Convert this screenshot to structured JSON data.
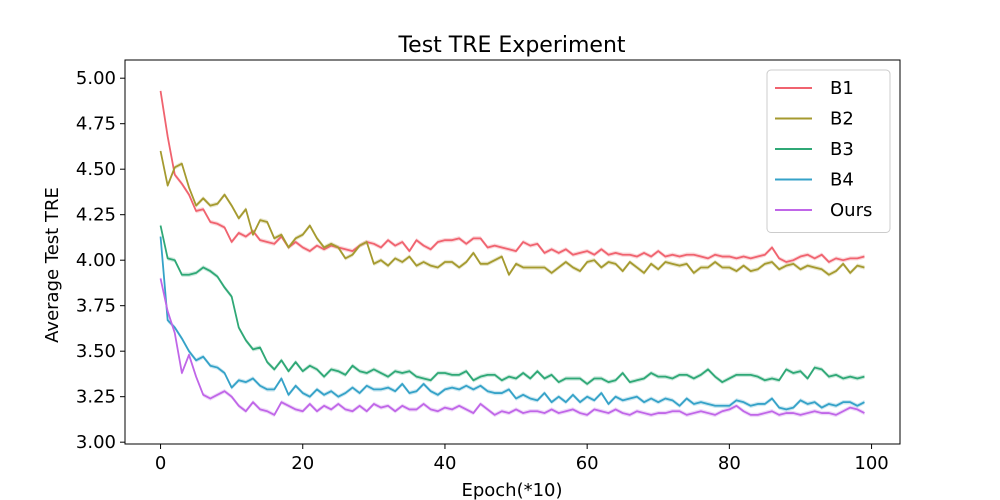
{
  "chart_data": {
    "type": "line",
    "title": "Test TRE Experiment",
    "xlabel": "Epoch(*10)",
    "ylabel": "Average Test TRE",
    "xlim": [
      -5,
      104
    ],
    "ylim": [
      2.99,
      5.1
    ],
    "xticks": [
      0,
      20,
      40,
      60,
      80,
      100
    ],
    "yticks": [
      "3.00",
      "3.25",
      "3.50",
      "3.75",
      "4.00",
      "4.25",
      "4.50",
      "4.75",
      "5.00"
    ],
    "grid": false,
    "legend_position": "top-right",
    "x": [
      0,
      1,
      2,
      3,
      4,
      5,
      6,
      7,
      8,
      9,
      10,
      11,
      12,
      13,
      14,
      15,
      16,
      17,
      18,
      19,
      20,
      21,
      22,
      23,
      24,
      25,
      26,
      27,
      28,
      29,
      30,
      31,
      32,
      33,
      34,
      35,
      36,
      37,
      38,
      39,
      40,
      41,
      42,
      43,
      44,
      45,
      46,
      47,
      48,
      49,
      50,
      51,
      52,
      53,
      54,
      55,
      56,
      57,
      58,
      59,
      60,
      61,
      62,
      63,
      64,
      65,
      66,
      67,
      68,
      69,
      70,
      71,
      72,
      73,
      74,
      75,
      76,
      77,
      78,
      79,
      80,
      81,
      82,
      83,
      84,
      85,
      86,
      87,
      88,
      89,
      90,
      91,
      92,
      93,
      94,
      95,
      96,
      97,
      98,
      99
    ],
    "series": [
      {
        "name": "B1",
        "color": "#f0636f",
        "values": [
          4.93,
          4.68,
          4.47,
          4.42,
          4.36,
          4.27,
          4.28,
          4.21,
          4.2,
          4.18,
          4.1,
          4.15,
          4.13,
          4.16,
          4.11,
          4.1,
          4.09,
          4.13,
          4.07,
          4.1,
          4.07,
          4.05,
          4.08,
          4.06,
          4.08,
          4.07,
          4.06,
          4.05,
          4.08,
          4.1,
          4.09,
          4.07,
          4.11,
          4.08,
          4.1,
          4.05,
          4.11,
          4.08,
          4.06,
          4.1,
          4.11,
          4.11,
          4.12,
          4.09,
          4.12,
          4.12,
          4.07,
          4.08,
          4.07,
          4.06,
          4.05,
          4.1,
          4.08,
          4.09,
          4.04,
          4.06,
          4.04,
          4.06,
          4.03,
          4.04,
          4.05,
          4.03,
          4.06,
          4.03,
          4.04,
          4.03,
          4.03,
          4.02,
          4.04,
          4.02,
          4.05,
          4.02,
          4.03,
          4.02,
          4.03,
          4.03,
          4.02,
          4.01,
          4.03,
          4.02,
          4.02,
          4.01,
          4.02,
          4.01,
          4.02,
          4.03,
          4.07,
          4.01,
          3.99,
          4.0,
          4.02,
          4.03,
          4.01,
          4.03,
          3.99,
          4.01,
          4.0,
          4.01,
          4.01,
          4.02
        ]
      },
      {
        "name": "B2",
        "color": "#a59a2f",
        "values": [
          4.6,
          4.41,
          4.51,
          4.53,
          4.4,
          4.3,
          4.34,
          4.3,
          4.31,
          4.36,
          4.3,
          4.23,
          4.28,
          4.14,
          4.22,
          4.21,
          4.12,
          4.14,
          4.07,
          4.12,
          4.14,
          4.19,
          4.12,
          4.07,
          4.09,
          4.07,
          4.01,
          4.03,
          4.08,
          4.1,
          3.98,
          4.0,
          3.97,
          4.01,
          3.99,
          4.02,
          3.97,
          3.99,
          3.97,
          3.96,
          3.99,
          3.99,
          3.96,
          3.99,
          4.04,
          3.98,
          3.98,
          4.0,
          4.02,
          3.92,
          3.98,
          3.96,
          3.96,
          3.96,
          3.96,
          3.93,
          3.96,
          3.99,
          3.96,
          3.94,
          3.99,
          4.0,
          3.96,
          3.99,
          3.98,
          3.94,
          3.99,
          3.96,
          3.93,
          3.98,
          3.95,
          3.99,
          3.98,
          3.97,
          3.98,
          3.93,
          3.96,
          3.96,
          3.99,
          3.96,
          3.96,
          3.94,
          3.97,
          3.94,
          3.95,
          3.98,
          3.99,
          3.95,
          3.97,
          3.98,
          3.95,
          3.97,
          3.96,
          3.95,
          3.92,
          3.94,
          3.98,
          3.93,
          3.97,
          3.96
        ]
      },
      {
        "name": "B3",
        "color": "#2fa876",
        "values": [
          4.19,
          4.01,
          4.0,
          3.92,
          3.92,
          3.93,
          3.96,
          3.94,
          3.91,
          3.85,
          3.8,
          3.63,
          3.56,
          3.51,
          3.52,
          3.44,
          3.4,
          3.45,
          3.39,
          3.44,
          3.39,
          3.42,
          3.4,
          3.36,
          3.4,
          3.39,
          3.37,
          3.42,
          3.39,
          3.38,
          3.4,
          3.38,
          3.36,
          3.39,
          3.38,
          3.39,
          3.36,
          3.35,
          3.34,
          3.38,
          3.38,
          3.37,
          3.37,
          3.39,
          3.34,
          3.36,
          3.37,
          3.37,
          3.34,
          3.36,
          3.35,
          3.38,
          3.35,
          3.39,
          3.35,
          3.37,
          3.33,
          3.35,
          3.35,
          3.35,
          3.32,
          3.35,
          3.35,
          3.33,
          3.34,
          3.38,
          3.33,
          3.34,
          3.35,
          3.38,
          3.36,
          3.36,
          3.35,
          3.37,
          3.37,
          3.35,
          3.37,
          3.4,
          3.36,
          3.33,
          3.35,
          3.37,
          3.37,
          3.37,
          3.36,
          3.34,
          3.35,
          3.34,
          3.4,
          3.38,
          3.39,
          3.35,
          3.41,
          3.4,
          3.36,
          3.37,
          3.35,
          3.36,
          3.35,
          3.36
        ]
      },
      {
        "name": "B4",
        "color": "#35a2c8",
        "values": [
          4.13,
          3.67,
          3.63,
          3.57,
          3.5,
          3.45,
          3.47,
          3.42,
          3.41,
          3.38,
          3.3,
          3.34,
          3.33,
          3.35,
          3.31,
          3.29,
          3.29,
          3.35,
          3.26,
          3.31,
          3.27,
          3.25,
          3.29,
          3.26,
          3.28,
          3.25,
          3.27,
          3.3,
          3.27,
          3.31,
          3.29,
          3.29,
          3.3,
          3.28,
          3.32,
          3.27,
          3.28,
          3.32,
          3.28,
          3.26,
          3.29,
          3.3,
          3.29,
          3.31,
          3.29,
          3.31,
          3.28,
          3.27,
          3.27,
          3.29,
          3.24,
          3.26,
          3.24,
          3.23,
          3.27,
          3.22,
          3.25,
          3.22,
          3.26,
          3.22,
          3.25,
          3.23,
          3.27,
          3.21,
          3.25,
          3.23,
          3.24,
          3.25,
          3.22,
          3.24,
          3.22,
          3.24,
          3.23,
          3.2,
          3.24,
          3.21,
          3.22,
          3.21,
          3.2,
          3.2,
          3.2,
          3.23,
          3.22,
          3.2,
          3.21,
          3.21,
          3.24,
          3.19,
          3.18,
          3.19,
          3.23,
          3.21,
          3.22,
          3.19,
          3.21,
          3.2,
          3.22,
          3.22,
          3.2,
          3.22
        ]
      },
      {
        "name": "Ours",
        "color": "#c066e8",
        "values": [
          3.9,
          3.72,
          3.6,
          3.38,
          3.48,
          3.36,
          3.26,
          3.24,
          3.26,
          3.28,
          3.25,
          3.2,
          3.17,
          3.22,
          3.18,
          3.17,
          3.15,
          3.22,
          3.2,
          3.18,
          3.17,
          3.21,
          3.17,
          3.2,
          3.18,
          3.21,
          3.18,
          3.17,
          3.2,
          3.17,
          3.21,
          3.19,
          3.2,
          3.17,
          3.2,
          3.18,
          3.18,
          3.21,
          3.18,
          3.17,
          3.19,
          3.18,
          3.2,
          3.18,
          3.16,
          3.21,
          3.18,
          3.15,
          3.17,
          3.16,
          3.18,
          3.16,
          3.17,
          3.17,
          3.16,
          3.18,
          3.16,
          3.17,
          3.18,
          3.16,
          3.15,
          3.18,
          3.17,
          3.16,
          3.18,
          3.16,
          3.15,
          3.17,
          3.16,
          3.15,
          3.16,
          3.16,
          3.17,
          3.17,
          3.15,
          3.16,
          3.17,
          3.16,
          3.15,
          3.17,
          3.18,
          3.2,
          3.17,
          3.15,
          3.15,
          3.16,
          3.17,
          3.15,
          3.16,
          3.16,
          3.15,
          3.16,
          3.17,
          3.16,
          3.16,
          3.15,
          3.17,
          3.19,
          3.18,
          3.16
        ]
      }
    ]
  }
}
